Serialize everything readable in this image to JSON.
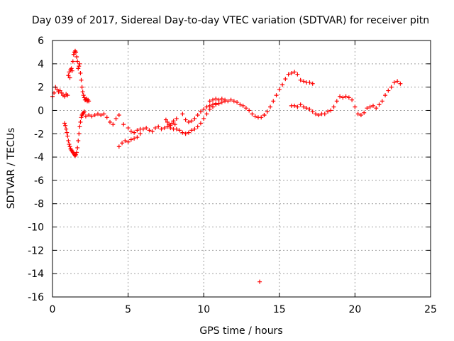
{
  "chart_data": {
    "type": "scatter",
    "title": "Day 039 of 2017, Sidereal Day-to-day VTEC variation (SDTVAR) for receiver pitn",
    "xlabel": "GPS time / hours",
    "ylabel": "SDTVAR / TECUs",
    "xlim": [
      0,
      25
    ],
    "ylim": [
      -16,
      6
    ],
    "xticks": [
      0,
      5,
      10,
      15,
      20,
      25
    ],
    "yticks": [
      6,
      4,
      2,
      0,
      -2,
      -4,
      -6,
      -8,
      -10,
      -12,
      -14,
      -16
    ],
    "grid": true,
    "marker": "+",
    "color": "#ff0000",
    "series": [
      {
        "x": [
          0.0,
          0.1,
          0.2,
          0.3,
          0.4,
          0.5,
          0.6,
          0.7,
          0.8,
          0.9,
          1.0,
          1.05,
          1.1,
          1.15,
          1.2,
          1.25,
          1.3,
          1.35,
          1.4,
          1.45,
          1.5,
          1.55,
          1.6,
          1.65,
          1.7,
          1.75,
          1.8,
          1.85,
          1.9,
          1.95,
          2.0,
          2.05,
          2.1,
          2.15,
          2.2,
          2.25,
          2.3,
          2.35,
          2.4
        ],
        "y": [
          1.2,
          1.5,
          2.0,
          1.8,
          1.6,
          1.7,
          1.5,
          1.3,
          1.2,
          1.4,
          1.3,
          3.0,
          3.3,
          2.8,
          3.5,
          3.6,
          3.4,
          4.2,
          4.8,
          5.0,
          5.1,
          5.0,
          4.6,
          4.2,
          3.6,
          3.8,
          4.0,
          3.2,
          2.6,
          2.0,
          1.6,
          1.3,
          1.1,
          0.9,
          0.9,
          1.0,
          0.8,
          0.9,
          0.8
        ]
      },
      {
        "x": [
          0.8,
          0.85,
          0.9,
          0.95,
          1.0,
          1.05,
          1.1,
          1.15,
          1.2,
          1.25,
          1.3,
          1.35,
          1.4,
          1.45,
          1.5,
          1.55,
          1.6,
          1.65,
          1.7,
          1.75,
          1.8,
          1.85,
          1.9,
          1.95,
          2.0,
          2.05,
          2.1
        ],
        "y": [
          -1.1,
          -1.3,
          -1.6,
          -1.9,
          -2.2,
          -2.6,
          -2.9,
          -3.1,
          -3.3,
          -3.4,
          -3.5,
          -3.6,
          -3.7,
          -3.8,
          -3.9,
          -3.8,
          -3.6,
          -3.2,
          -2.6,
          -2.0,
          -1.4,
          -1.0,
          -0.6,
          -0.4,
          -0.3,
          -0.2,
          -0.1
        ]
      },
      {
        "x": [
          2.0,
          2.2,
          2.4,
          2.6,
          2.8,
          3.0,
          3.2,
          3.4,
          3.6,
          3.8,
          4.0,
          4.2,
          4.4
        ],
        "y": [
          -0.3,
          -0.5,
          -0.4,
          -0.5,
          -0.4,
          -0.3,
          -0.4,
          -0.3,
          -0.6,
          -1.0,
          -1.2,
          -0.7,
          -0.4
        ]
      },
      {
        "x": [
          4.4,
          4.6,
          4.8,
          5.0,
          5.2,
          5.4,
          5.6,
          5.8
        ],
        "y": [
          -3.1,
          -2.8,
          -2.6,
          -2.7,
          -2.5,
          -2.4,
          -2.3,
          -2.0
        ]
      },
      {
        "x": [
          4.7,
          5.0,
          5.2,
          5.4,
          5.6,
          5.8,
          6.0,
          6.2,
          6.4,
          6.6,
          6.8,
          7.0,
          7.2,
          7.4,
          7.6,
          7.8,
          8.0,
          8.2,
          8.4,
          8.6,
          8.8,
          9.0,
          9.2,
          9.4,
          9.6,
          9.8,
          10.0,
          10.2,
          10.4,
          10.6,
          10.8,
          11.0
        ],
        "y": [
          -1.2,
          -1.5,
          -1.8,
          -1.9,
          -1.7,
          -1.6,
          -1.6,
          -1.5,
          -1.7,
          -1.8,
          -1.5,
          -1.4,
          -1.6,
          -1.5,
          -1.4,
          -1.5,
          -1.6,
          -1.6,
          -1.7,
          -1.9,
          -2.0,
          -1.9,
          -1.7,
          -1.6,
          -1.4,
          -1.1,
          -0.7,
          -0.3,
          0.1,
          0.3,
          0.5,
          0.6
        ]
      },
      {
        "x": [
          7.5,
          7.6,
          7.7,
          7.8,
          7.9,
          8.0,
          8.1,
          8.2
        ],
        "y": [
          -0.8,
          -1.0,
          -1.2,
          -1.3,
          -1.1,
          -0.9,
          -1.2,
          -0.7
        ]
      },
      {
        "x": [
          8.8,
          9.0,
          9.2,
          9.4,
          9.6,
          9.8,
          10.0,
          10.2,
          10.4,
          10.6,
          10.8,
          11.0,
          11.2,
          11.4,
          11.6,
          11.8,
          12.0,
          12.2,
          12.4,
          12.6,
          12.8,
          13.0,
          13.2,
          13.4,
          13.6,
          13.8,
          14.0
        ],
        "y": [
          -0.8,
          -1.0,
          -0.9,
          -0.7,
          -0.4,
          -0.1,
          0.1,
          0.3,
          0.4,
          0.5,
          0.6,
          0.6,
          0.7,
          0.8,
          0.8,
          0.9,
          0.8,
          0.7,
          0.5,
          0.4,
          0.2,
          0.0,
          -0.3,
          -0.5,
          -0.6,
          -0.6,
          -0.4
        ]
      },
      {
        "x": [
          10.4,
          10.6,
          10.8,
          11.0,
          11.2,
          11.4
        ],
        "y": [
          0.8,
          0.9,
          1.0,
          0.9,
          1.0,
          0.9
        ]
      },
      {
        "x": [
          8.6,
          13.7
        ],
        "y": [
          -0.3,
          -14.7
        ]
      },
      {
        "x": [
          14.0,
          14.2,
          14.4,
          14.6,
          14.8,
          15.0,
          15.2,
          15.4,
          15.6,
          15.8,
          16.0,
          16.2,
          16.4,
          16.6,
          16.8,
          17.0,
          17.2
        ],
        "y": [
          -0.4,
          -0.1,
          0.3,
          0.8,
          1.3,
          1.8,
          2.2,
          2.7,
          3.1,
          3.2,
          3.3,
          3.1,
          2.6,
          2.5,
          2.4,
          2.4,
          2.3
        ]
      },
      {
        "x": [
          15.8,
          16.0,
          16.2,
          16.4,
          16.6,
          16.8,
          17.0,
          17.2,
          17.4,
          17.6,
          17.8,
          18.0,
          18.2,
          18.4,
          18.6,
          18.8,
          19.0,
          19.2,
          19.4,
          19.6,
          19.8,
          20.0,
          20.2,
          20.4,
          20.6,
          20.8,
          21.0,
          21.2,
          21.4,
          21.6,
          21.8,
          22.0,
          22.2,
          22.4,
          22.6,
          22.8,
          23.0
        ],
        "y": [
          0.4,
          0.4,
          0.3,
          0.5,
          0.3,
          0.2,
          0.1,
          -0.1,
          -0.3,
          -0.4,
          -0.3,
          -0.3,
          -0.1,
          0.0,
          0.3,
          0.8,
          1.2,
          1.1,
          1.2,
          1.1,
          0.9,
          0.3,
          -0.3,
          -0.4,
          -0.2,
          0.2,
          0.3,
          0.4,
          0.2,
          0.5,
          0.8,
          1.3,
          1.7,
          2.0,
          2.4,
          2.5,
          2.3
        ]
      }
    ]
  }
}
